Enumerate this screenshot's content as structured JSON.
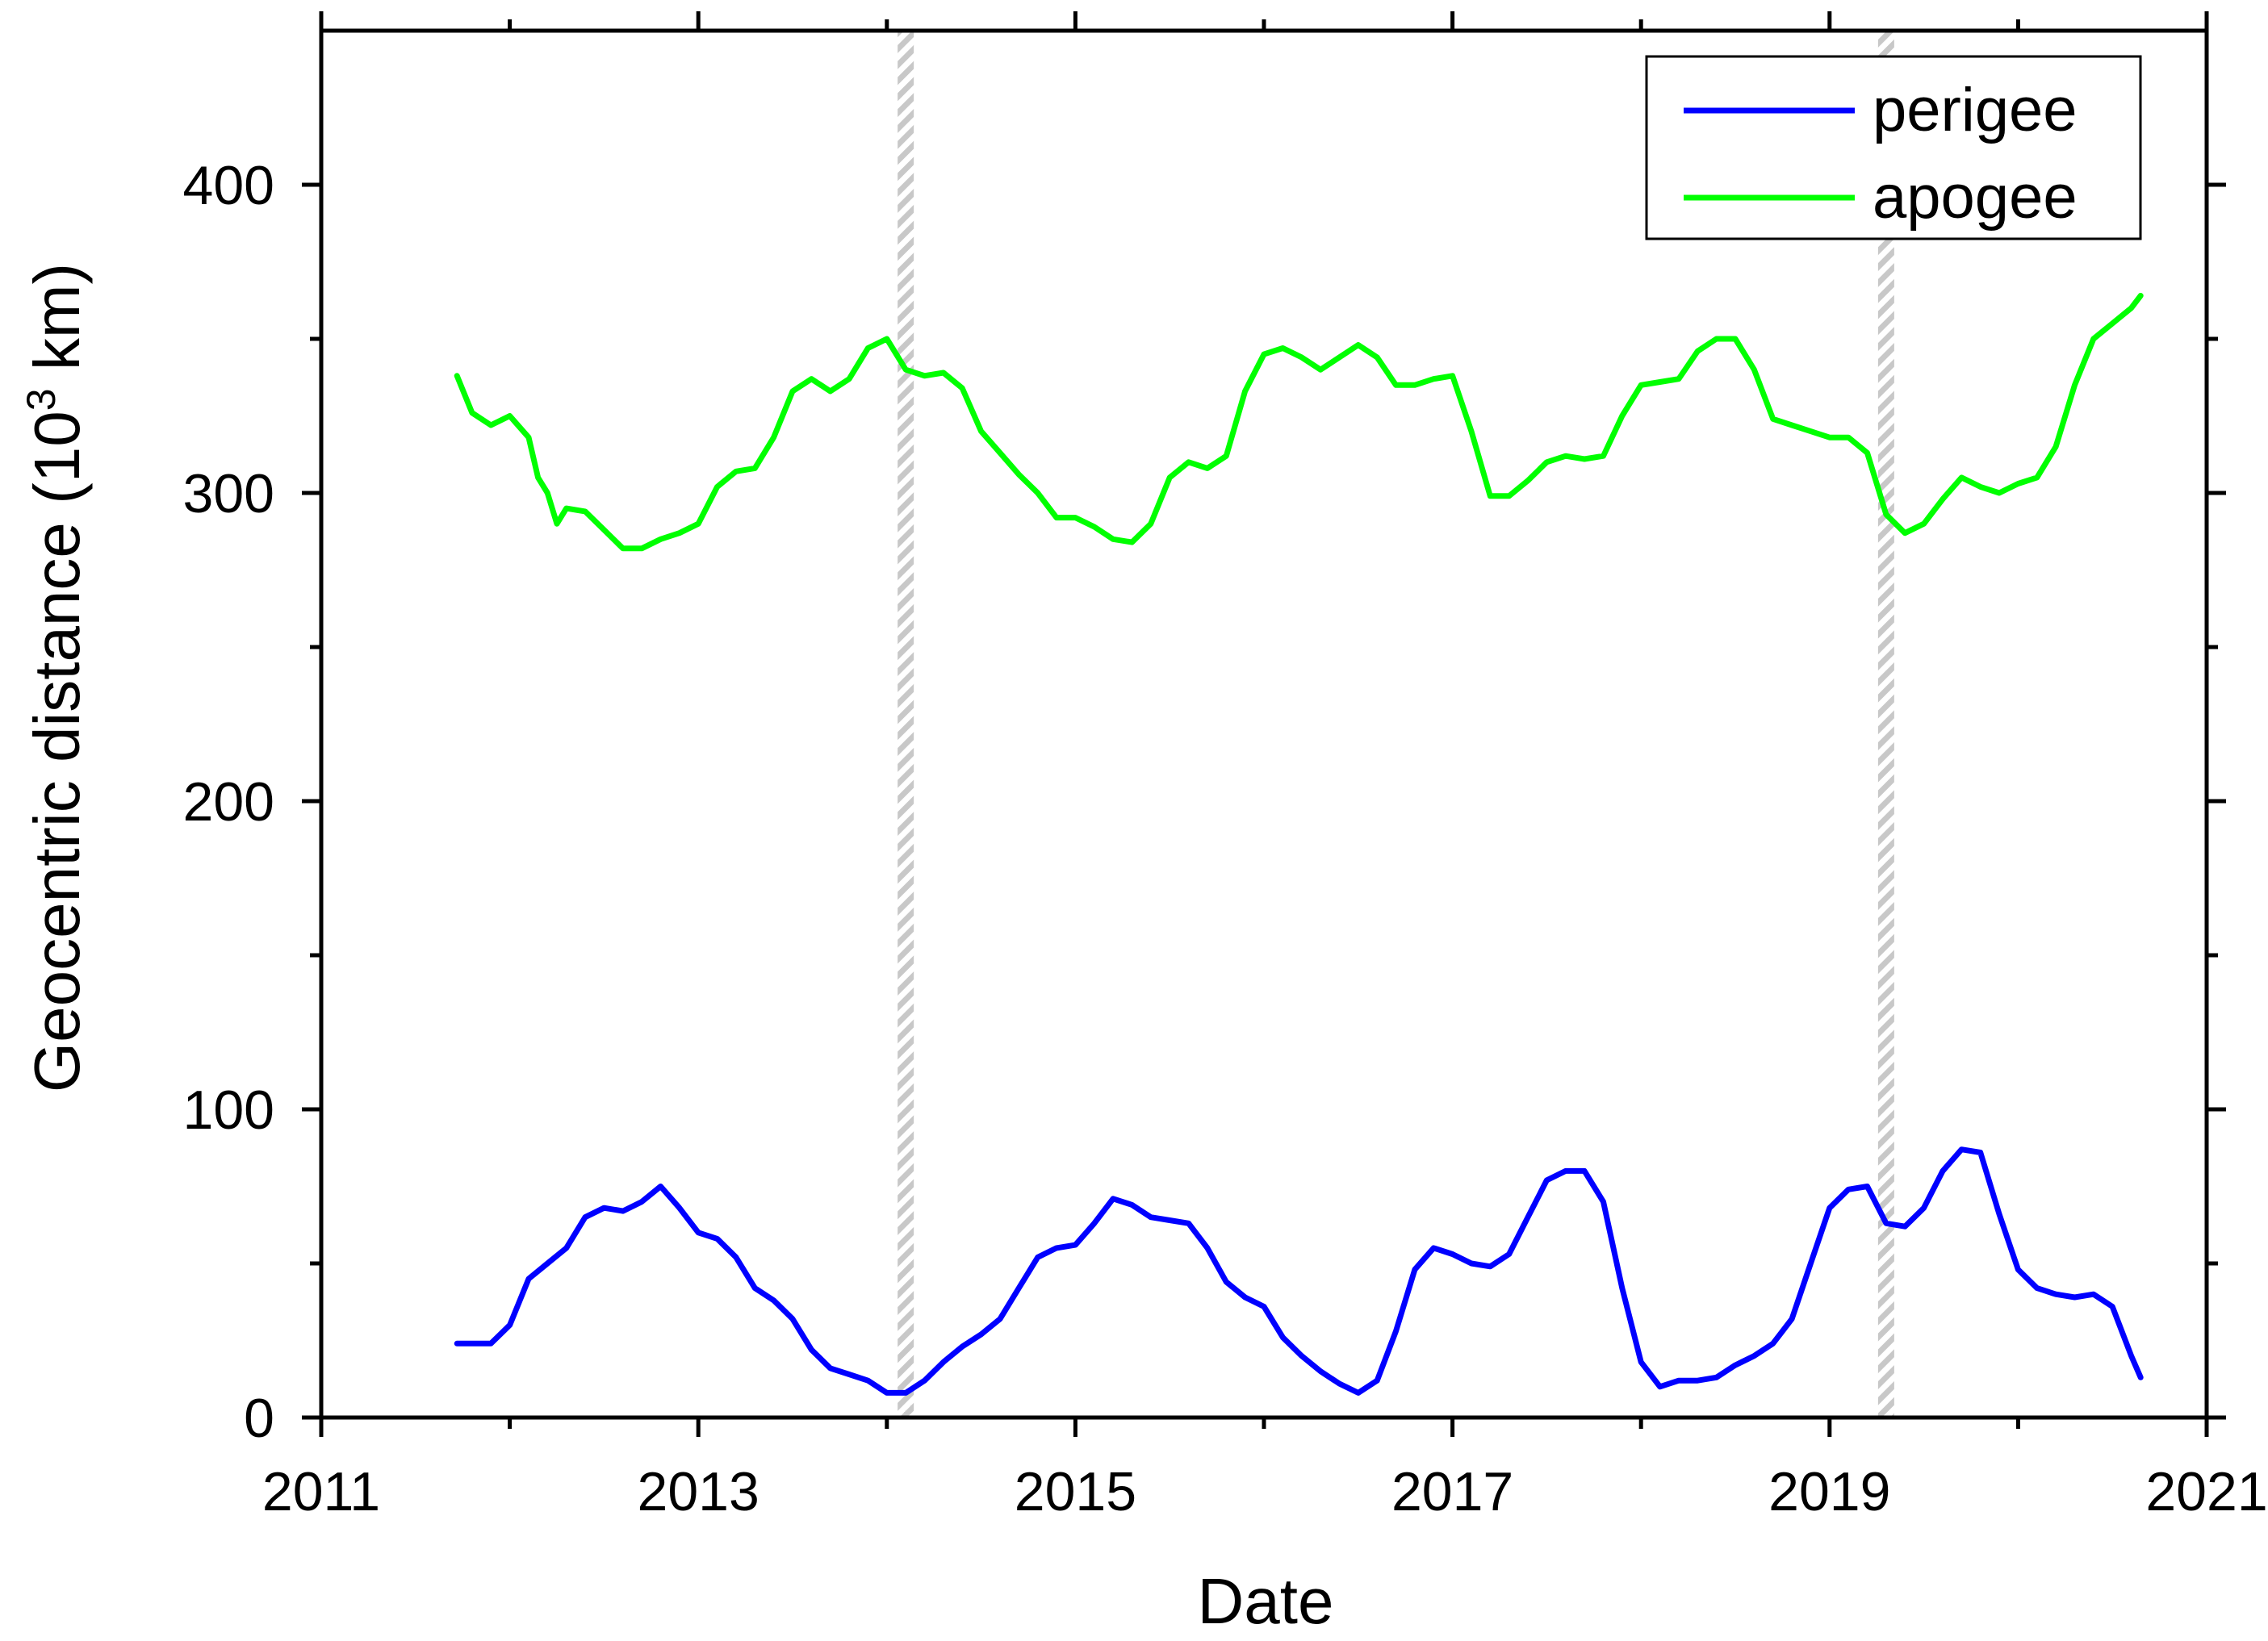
{
  "chart_data": {
    "type": "line",
    "xlabel": "Date",
    "ylabel": "Geocentric distance (10",
    "ylabel_superscript": "3",
    "ylabel_suffix": " km)",
    "xlim": [
      2011,
      2021
    ],
    "ylim": [
      0,
      450
    ],
    "x_ticks": [
      2011,
      2013,
      2015,
      2017,
      2019,
      2021
    ],
    "x_tick_labels": [
      "2011",
      "2013",
      "2015",
      "2017",
      "2019",
      "2021"
    ],
    "x_minor_ticks": [
      2012,
      2014,
      2016,
      2018,
      2020
    ],
    "y_ticks": [
      0,
      100,
      200,
      300,
      400
    ],
    "y_tick_labels": [
      "0",
      "100",
      "200",
      "300",
      "400"
    ],
    "y_minor_ticks": [
      50,
      150,
      250,
      350
    ],
    "grid": false,
    "legend_position": "top-right",
    "shaded_markers": [
      {
        "x": 2014.1,
        "color": "#c8c8c8",
        "style": "hatched"
      },
      {
        "x": 2019.3,
        "color": "#c8c8c8",
        "style": "hatched"
      }
    ],
    "series": [
      {
        "name": "perigee",
        "color": "#0000ff",
        "x": [
          2011.72,
          2011.9,
          2012.0,
          2012.1,
          2012.2,
          2012.3,
          2012.4,
          2012.5,
          2012.6,
          2012.7,
          2012.8,
          2012.9,
          2013.0,
          2013.1,
          2013.2,
          2013.3,
          2013.4,
          2013.5,
          2013.6,
          2013.7,
          2013.8,
          2013.9,
          2014.0,
          2014.1,
          2014.2,
          2014.3,
          2014.4,
          2014.5,
          2014.6,
          2014.7,
          2014.8,
          2014.9,
          2015.0,
          2015.1,
          2015.2,
          2015.3,
          2015.4,
          2015.5,
          2015.6,
          2015.7,
          2015.8,
          2015.9,
          2016.0,
          2016.1,
          2016.2,
          2016.3,
          2016.4,
          2016.5,
          2016.6,
          2016.7,
          2016.8,
          2016.9,
          2017.0,
          2017.1,
          2017.2,
          2017.3,
          2017.4,
          2017.5,
          2017.6,
          2017.7,
          2017.8,
          2017.9,
          2018.0,
          2018.1,
          2018.2,
          2018.3,
          2018.4,
          2018.5,
          2018.6,
          2018.7,
          2018.8,
          2018.9,
          2019.0,
          2019.1,
          2019.2,
          2019.3,
          2019.4,
          2019.5,
          2019.6,
          2019.7,
          2019.8,
          2019.9,
          2020.0,
          2020.1,
          2020.2,
          2020.3,
          2020.4,
          2020.5,
          2020.6,
          2020.65
        ],
        "y": [
          24,
          24,
          30,
          45,
          50,
          55,
          65,
          68,
          67,
          70,
          75,
          68,
          60,
          58,
          52,
          42,
          38,
          32,
          22,
          16,
          14,
          12,
          8,
          8,
          12,
          18,
          23,
          27,
          32,
          42,
          52,
          55,
          56,
          63,
          71,
          69,
          65,
          64,
          63,
          55,
          44,
          39,
          36,
          26,
          20,
          15,
          11,
          8,
          12,
          28,
          48,
          55,
          53,
          50,
          49,
          53,
          65,
          77,
          80,
          80,
          70,
          42,
          18,
          10,
          12,
          12,
          13,
          17,
          20,
          24,
          32,
          50,
          68,
          74,
          75,
          63,
          62,
          68,
          80,
          87,
          86,
          66,
          48,
          42,
          40,
          39,
          40,
          36,
          20,
          13
        ]
      },
      {
        "name": "apogee",
        "color": "#00ff00",
        "x": [
          2011.72,
          2011.8,
          2011.9,
          2012.0,
          2012.1,
          2012.15,
          2012.2,
          2012.25,
          2012.3,
          2012.4,
          2012.5,
          2012.6,
          2012.7,
          2012.8,
          2012.9,
          2013.0,
          2013.1,
          2013.2,
          2013.3,
          2013.4,
          2013.5,
          2013.6,
          2013.7,
          2013.8,
          2013.9,
          2014.0,
          2014.1,
          2014.2,
          2014.3,
          2014.4,
          2014.5,
          2014.6,
          2014.7,
          2014.8,
          2014.9,
          2015.0,
          2015.1,
          2015.2,
          2015.3,
          2015.4,
          2015.5,
          2015.6,
          2015.7,
          2015.8,
          2015.9,
          2016.0,
          2016.1,
          2016.2,
          2016.3,
          2016.4,
          2016.5,
          2016.6,
          2016.7,
          2016.8,
          2016.9,
          2017.0,
          2017.1,
          2017.2,
          2017.3,
          2017.4,
          2017.5,
          2017.6,
          2017.7,
          2017.8,
          2017.9,
          2018.0,
          2018.1,
          2018.2,
          2018.3,
          2018.4,
          2018.5,
          2018.6,
          2018.7,
          2018.8,
          2018.9,
          2019.0,
          2019.1,
          2019.2,
          2019.3,
          2019.4,
          2019.5,
          2019.6,
          2019.7,
          2019.8,
          2019.9,
          2020.0,
          2020.1,
          2020.2,
          2020.3,
          2020.4,
          2020.5,
          2020.6,
          2020.65
        ],
        "y": [
          338,
          326,
          322,
          325,
          318,
          305,
          300,
          290,
          295,
          294,
          288,
          282,
          282,
          285,
          287,
          290,
          302,
          307,
          308,
          318,
          333,
          337,
          333,
          337,
          347,
          350,
          340,
          338,
          339,
          334,
          320,
          313,
          306,
          300,
          292,
          292,
          289,
          285,
          284,
          290,
          305,
          310,
          308,
          312,
          333,
          345,
          347,
          344,
          340,
          344,
          348,
          344,
          335,
          335,
          337,
          338,
          320,
          299,
          299,
          304,
          310,
          312,
          311,
          312,
          325,
          335,
          336,
          337,
          346,
          350,
          350,
          340,
          324,
          322,
          320,
          318,
          318,
          313,
          293,
          287,
          290,
          298,
          305,
          302,
          300,
          303,
          305,
          315,
          335,
          350,
          355,
          360,
          364
        ]
      }
    ]
  }
}
